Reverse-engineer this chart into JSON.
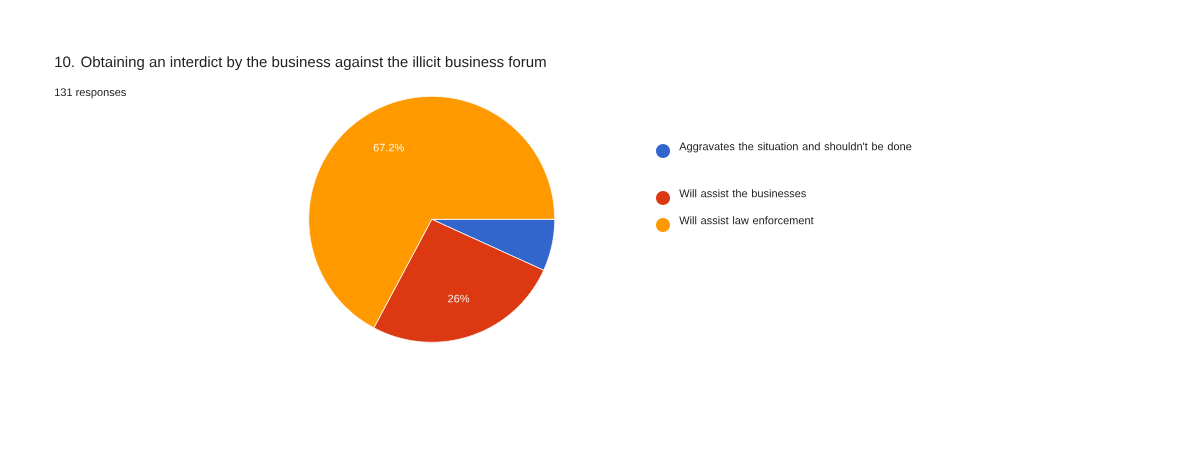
{
  "chart_data": {
    "type": "pie",
    "title": "10. Obtaining an interdict by the business against the illicit business forum",
    "subtitle": "131 responses",
    "categories": [
      "Aggravates the situation and shouldn't be done",
      "Will assist the businesses",
      "Will assist law enforcement"
    ],
    "values": [
      6.8,
      26,
      67.2
    ],
    "colors": [
      "#3366cc",
      "#dc3912",
      "#ff9900"
    ],
    "value_labels": [
      null,
      "26%",
      "67.2%"
    ],
    "legend": "right"
  }
}
